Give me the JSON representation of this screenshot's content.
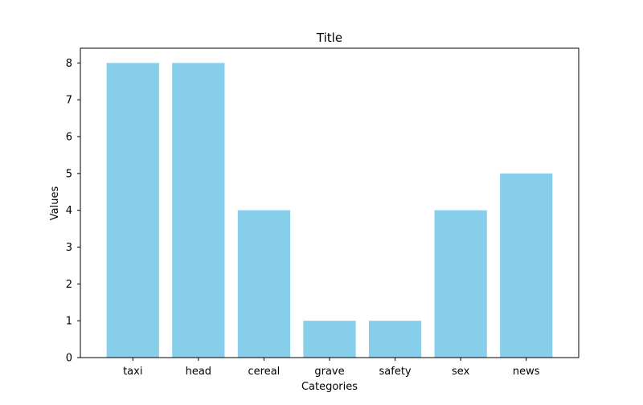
{
  "chart_data": {
    "type": "bar",
    "title": "Title",
    "xlabel": "Categories",
    "ylabel": "Values",
    "categories": [
      "taxi",
      "head",
      "cereal",
      "grave",
      "safety",
      "sex",
      "news"
    ],
    "values": [
      8,
      8,
      4,
      1,
      1,
      4,
      5
    ],
    "ylim": [
      0,
      8.4
    ],
    "yticks": [
      0,
      1,
      2,
      3,
      4,
      5,
      6,
      7,
      8
    ],
    "grid": false,
    "legend": "none",
    "bar_color": "#87ceeb"
  }
}
